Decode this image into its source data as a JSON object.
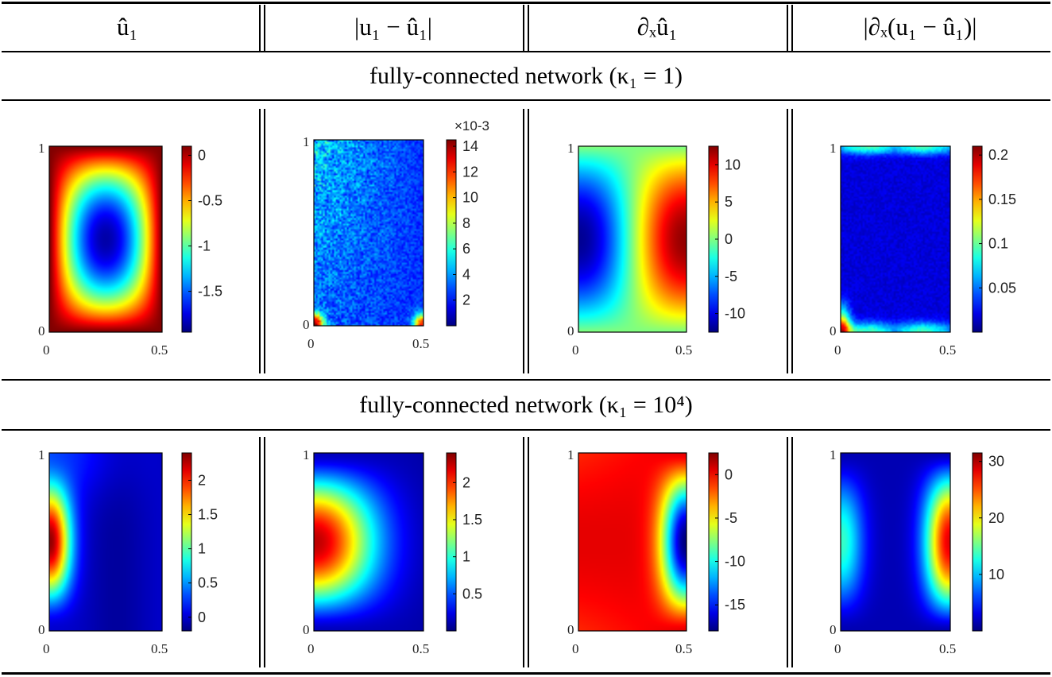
{
  "headers": [
    {
      "label": "û₁"
    },
    {
      "label": "|u₁ − û₁|"
    },
    {
      "label": "∂ₓû₁"
    },
    {
      "label": "|∂ₓ(u₁ − û₁)|"
    }
  ],
  "rows": [
    {
      "title": "fully-connected network (κ₁ = 1)",
      "panels": [
        {
          "colormap": "jet",
          "field": "u_hat_fc1",
          "x_ticks": [
            "0",
            "0.5"
          ],
          "y_ticks": [
            "0",
            "1"
          ],
          "cbar_ticks": [
            "0",
            "-0.5",
            "-1",
            "-1.5"
          ],
          "cbar_range": [
            -1.95,
            0.1
          ],
          "cbar_tick_values": [
            0,
            -0.5,
            -1,
            -1.5
          ],
          "multiplier": ""
        },
        {
          "colormap": "jet",
          "field": "err_fc1",
          "x_ticks": [
            "0",
            "0.5"
          ],
          "y_ticks": [
            "0",
            "1"
          ],
          "cbar_ticks": [
            "14",
            "12",
            "10",
            "8",
            "6",
            "4",
            "2"
          ],
          "cbar_range": [
            0,
            14.5
          ],
          "cbar_tick_values": [
            14,
            12,
            10,
            8,
            6,
            4,
            2
          ],
          "multiplier": "×10-3"
        },
        {
          "colormap": "jet",
          "field": "dx_fc1",
          "x_ticks": [
            "0",
            "0.5"
          ],
          "y_ticks": [
            "0",
            "1"
          ],
          "cbar_ticks": [
            "10",
            "5",
            "0",
            "-5",
            "-10"
          ],
          "cbar_range": [
            -12.5,
            12.5
          ],
          "cbar_tick_values": [
            10,
            5,
            0,
            -5,
            -10
          ],
          "multiplier": ""
        },
        {
          "colormap": "jet",
          "field": "dxerr_fc1",
          "x_ticks": [
            "0",
            "0.5"
          ],
          "y_ticks": [
            "0",
            "1"
          ],
          "cbar_ticks": [
            "0.2",
            "0.15",
            "0.1",
            "0.05"
          ],
          "cbar_range": [
            0,
            0.21
          ],
          "cbar_tick_values": [
            0.2,
            0.15,
            0.1,
            0.05
          ],
          "multiplier": ""
        }
      ]
    },
    {
      "title": "fully-connected network (κ₁ = 10⁴)",
      "panels": [
        {
          "colormap": "jet",
          "field": "u_hat_fc4",
          "x_ticks": [
            "0",
            "0.5"
          ],
          "y_ticks": [
            "0",
            "1"
          ],
          "cbar_ticks": [
            "2",
            "1.5",
            "1",
            "0.5",
            "0"
          ],
          "cbar_range": [
            -0.2,
            2.4
          ],
          "cbar_tick_values": [
            2,
            1.5,
            1,
            0.5,
            0
          ],
          "multiplier": ""
        },
        {
          "colormap": "jet",
          "field": "err_fc4",
          "x_ticks": [
            "0",
            "0.5"
          ],
          "y_ticks": [
            "0",
            "1"
          ],
          "cbar_ticks": [
            "2",
            "1.5",
            "1",
            "0.5"
          ],
          "cbar_range": [
            0,
            2.4
          ],
          "cbar_tick_values": [
            2,
            1.5,
            1,
            0.5
          ],
          "multiplier": ""
        },
        {
          "colormap": "jet",
          "field": "dx_fc4",
          "x_ticks": [
            "0",
            "0.5"
          ],
          "y_ticks": [
            "0",
            "1"
          ],
          "cbar_ticks": [
            "0",
            "-5",
            "-10",
            "-15"
          ],
          "cbar_range": [
            -18,
            2.5
          ],
          "cbar_tick_values": [
            0,
            -5,
            -10,
            -15
          ],
          "multiplier": ""
        },
        {
          "colormap": "jet",
          "field": "dxerr_fc4",
          "x_ticks": [
            "0",
            "0.5"
          ],
          "y_ticks": [
            "0",
            "1"
          ],
          "cbar_ticks": [
            "30",
            "20",
            "10"
          ],
          "cbar_range": [
            0,
            31.5
          ],
          "cbar_tick_values": [
            30,
            20,
            10
          ],
          "multiplier": ""
        }
      ]
    }
  ]
}
